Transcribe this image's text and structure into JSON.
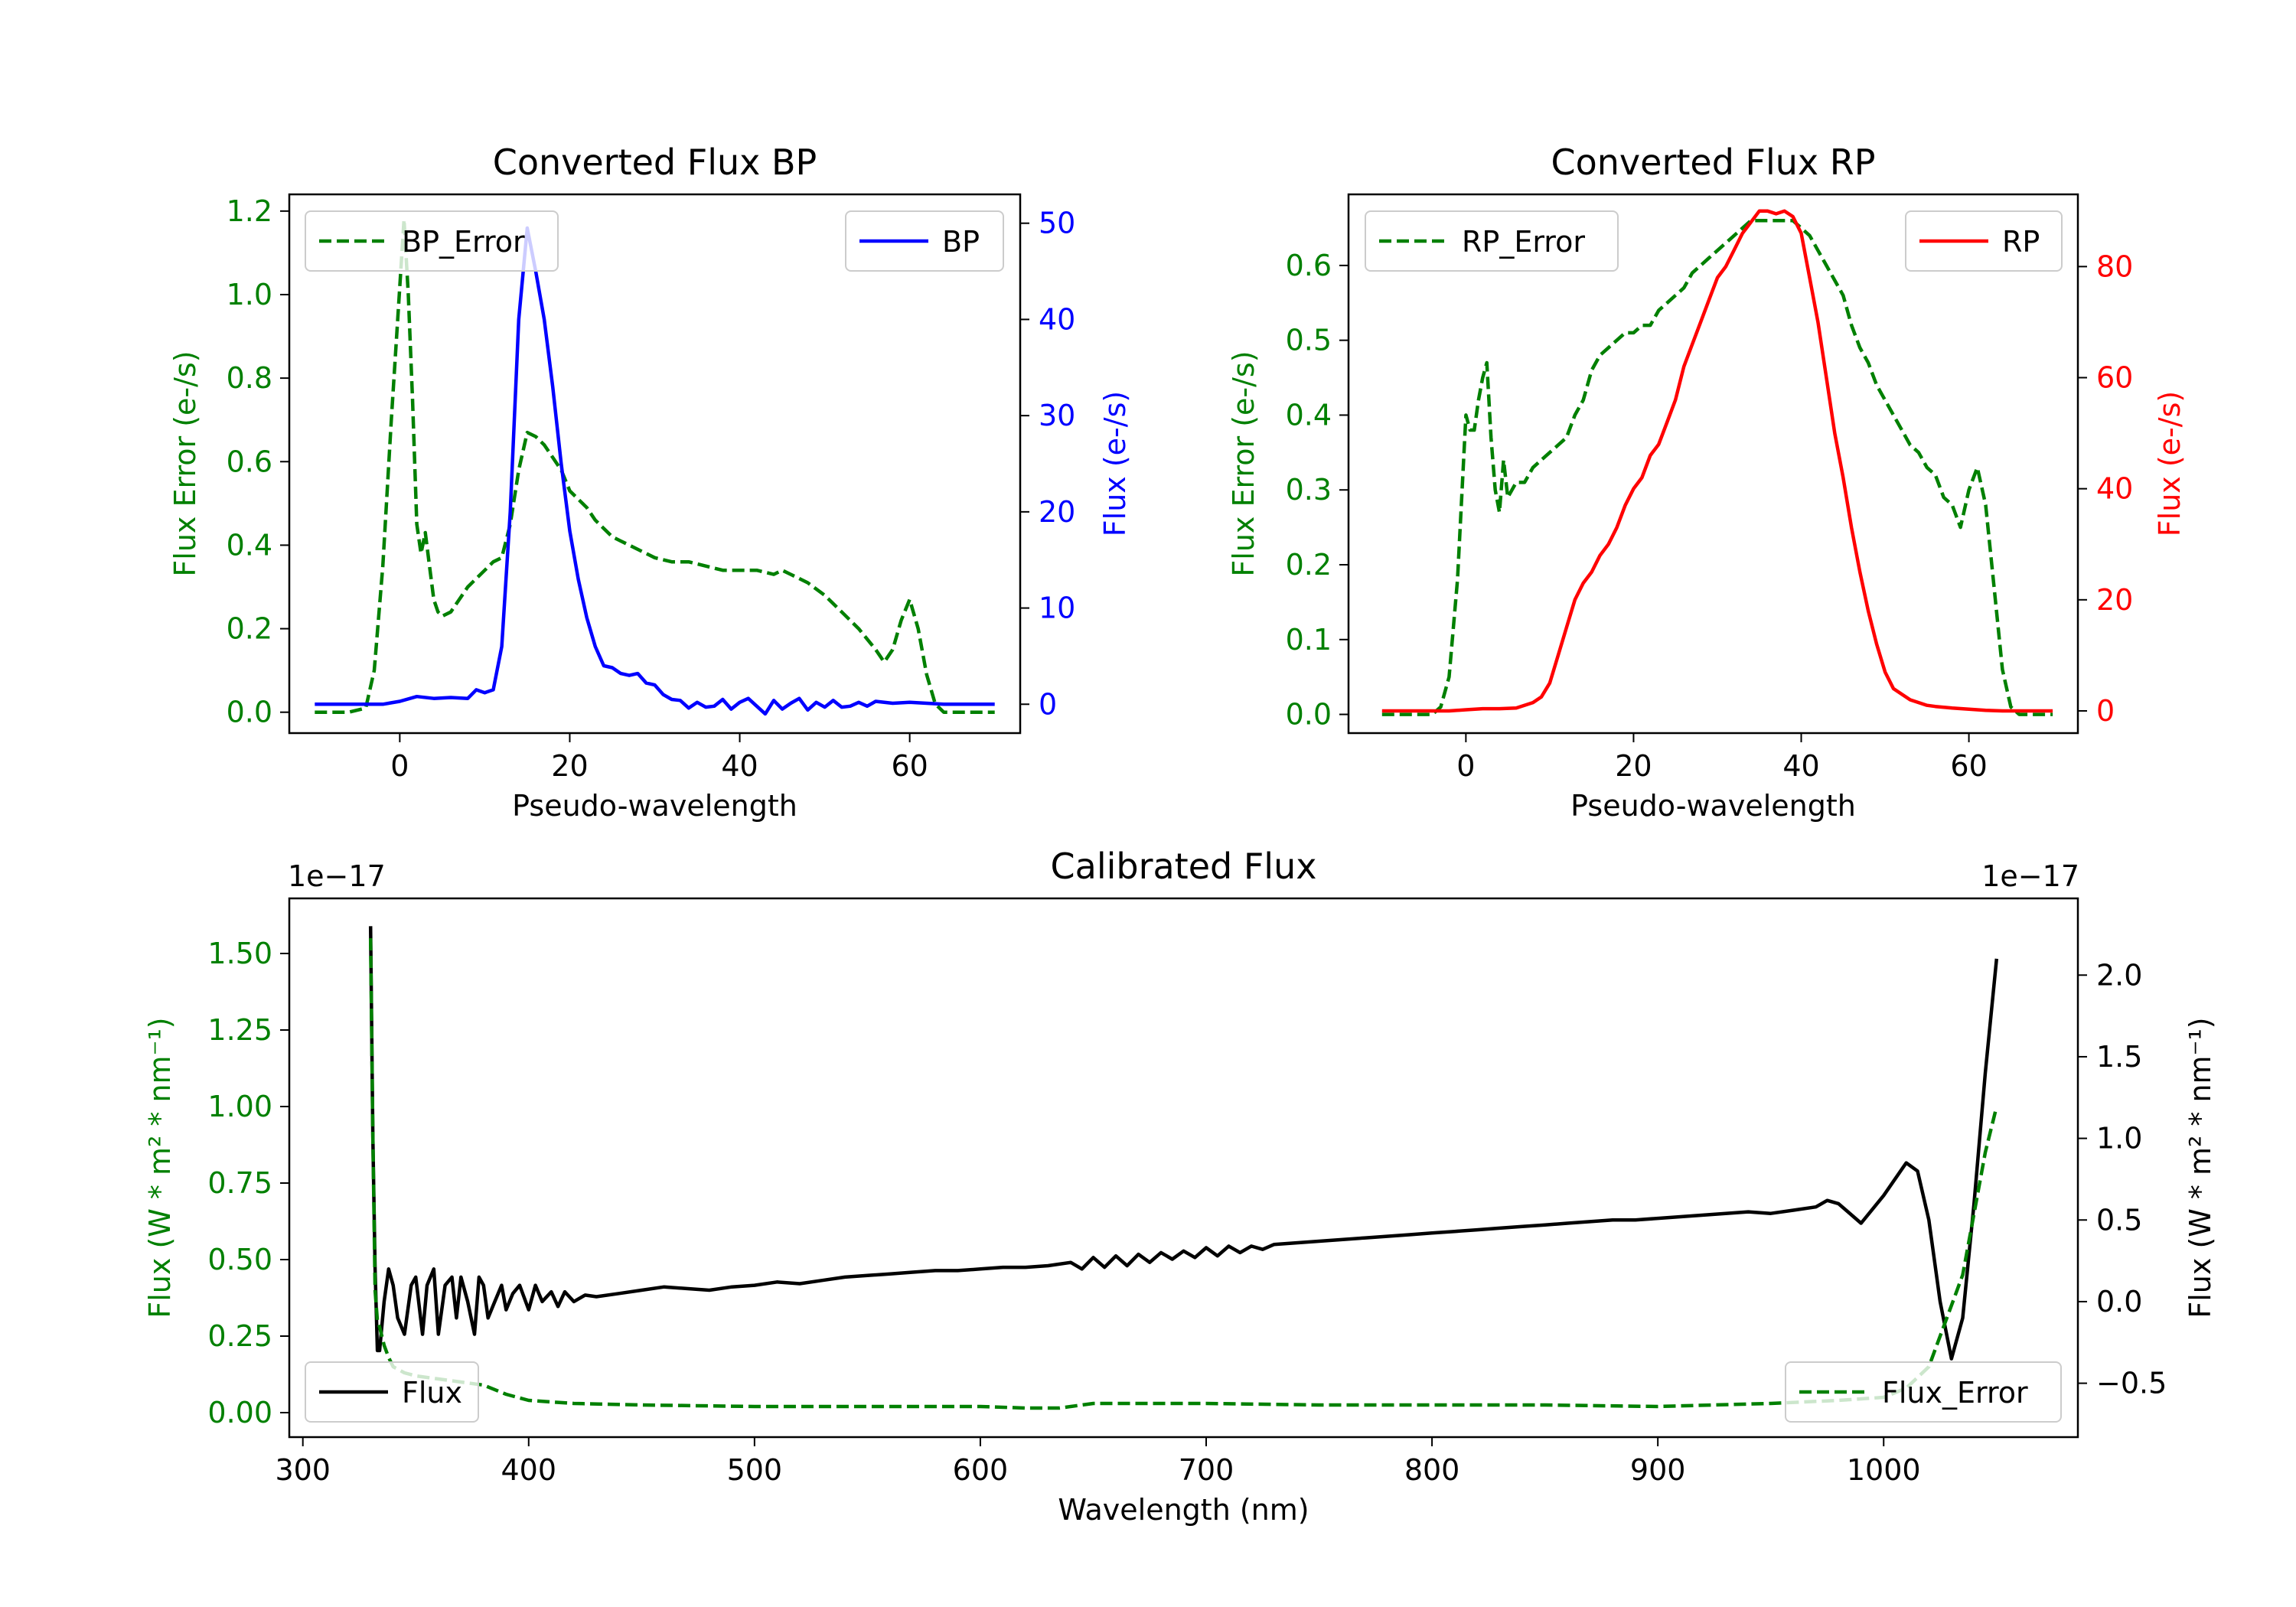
{
  "colors": {
    "error": "#008000",
    "bp": "#0000ff",
    "rp": "#ff0000",
    "flux": "#000000",
    "axis": "#000000"
  },
  "chart_data": [
    {
      "type": "line",
      "title": "Converted Flux BP",
      "xlabel": "Pseudo-wavelength",
      "ylabel_left": "Flux Error (e-/s)",
      "ylabel_right": "Flux (e-/s)",
      "xlim": [
        -13,
        73
      ],
      "ylim_left": [
        -0.05,
        1.24
      ],
      "ylim_right": [
        -3,
        53
      ],
      "x_ticks": [
        "0",
        "20",
        "40",
        "60"
      ],
      "y_ticks_left": [
        "0.0",
        "0.2",
        "0.4",
        "0.6",
        "0.8",
        "1.0",
        "1.2"
      ],
      "y_ticks_right": [
        "0",
        "10",
        "20",
        "30",
        "40",
        "50"
      ],
      "legend_left": "BP_Error",
      "legend_right": "BP",
      "series": [
        {
          "name": "BP_Error",
          "axis": "left",
          "style": "dashed",
          "x": [
            -10,
            -6,
            -4,
            -3,
            -2,
            -1,
            0,
            0.5,
            1,
            1.5,
            2,
            2.5,
            3,
            3.5,
            4,
            4.5,
            5,
            6,
            7,
            8,
            9,
            10,
            11,
            12,
            13,
            14,
            15,
            16,
            17,
            18,
            19,
            20,
            21,
            22,
            23,
            24,
            25,
            26,
            27,
            28,
            29,
            30,
            32,
            34,
            36,
            38,
            40,
            42,
            44,
            45,
            46,
            48,
            50,
            52,
            54,
            56,
            57,
            58,
            59,
            60,
            61,
            62,
            63,
            64,
            66,
            68,
            70
          ],
          "values": [
            0.0,
            0.0,
            0.01,
            0.1,
            0.35,
            0.7,
            1.02,
            1.18,
            1.0,
            0.75,
            0.45,
            0.38,
            0.43,
            0.35,
            0.27,
            0.24,
            0.23,
            0.24,
            0.27,
            0.3,
            0.32,
            0.34,
            0.36,
            0.37,
            0.45,
            0.58,
            0.67,
            0.66,
            0.64,
            0.61,
            0.58,
            0.53,
            0.51,
            0.49,
            0.46,
            0.44,
            0.42,
            0.41,
            0.4,
            0.39,
            0.38,
            0.37,
            0.36,
            0.36,
            0.35,
            0.34,
            0.34,
            0.34,
            0.33,
            0.34,
            0.33,
            0.31,
            0.28,
            0.24,
            0.2,
            0.15,
            0.12,
            0.15,
            0.22,
            0.27,
            0.2,
            0.09,
            0.02,
            0.0,
            0.0,
            0.0,
            0.0
          ]
        },
        {
          "name": "BP",
          "axis": "right",
          "style": "solid",
          "x": [
            -10,
            -6,
            -4,
            -2,
            0,
            2,
            4,
            6,
            8,
            9,
            10,
            11,
            12,
            13,
            14,
            15,
            16,
            17,
            18,
            19,
            20,
            21,
            22,
            23,
            24,
            25,
            26,
            27,
            28,
            29,
            30,
            31,
            32,
            33,
            34,
            35,
            36,
            37,
            38,
            39,
            40,
            41,
            42,
            43,
            44,
            45,
            46,
            47,
            48,
            49,
            50,
            51,
            52,
            53,
            54,
            55,
            56,
            58,
            60,
            62,
            64,
            66,
            68,
            70
          ],
          "values": [
            0.0,
            0.0,
            0.0,
            0.0,
            0.3,
            0.8,
            0.6,
            0.7,
            0.6,
            1.5,
            1.2,
            1.5,
            6.0,
            20.0,
            40.0,
            49.5,
            45.0,
            40.0,
            33.0,
            25.0,
            18.0,
            13.0,
            9.0,
            6.0,
            4.0,
            3.8,
            3.2,
            3.0,
            3.2,
            2.2,
            2.0,
            1.0,
            0.5,
            0.4,
            -0.4,
            0.2,
            -0.3,
            -0.2,
            0.5,
            -0.5,
            0.2,
            0.6,
            -0.2,
            -1.0,
            0.4,
            -0.5,
            0.1,
            0.6,
            -0.6,
            0.2,
            -0.3,
            0.4,
            -0.3,
            -0.2,
            0.2,
            -0.2,
            0.3,
            0.1,
            0.2,
            0.1,
            0.0,
            0.0,
            0.0,
            0.0
          ]
        }
      ]
    },
    {
      "type": "line",
      "title": "Converted Flux RP",
      "xlabel": "Pseudo-wavelength",
      "ylabel_left": "Flux Error (e-/s)",
      "ylabel_right": "Flux (e-/s)",
      "xlim": [
        -14,
        73
      ],
      "ylim_left": [
        -0.025,
        0.695
      ],
      "ylim_right": [
        -4,
        93
      ],
      "x_ticks": [
        "0",
        "20",
        "40",
        "60"
      ],
      "y_ticks_left": [
        "0.0",
        "0.1",
        "0.2",
        "0.3",
        "0.4",
        "0.5",
        "0.6"
      ],
      "y_ticks_right": [
        "0",
        "20",
        "40",
        "60",
        "80"
      ],
      "legend_left": "RP_Error",
      "legend_right": "RP",
      "series": [
        {
          "name": "RP_Error",
          "axis": "left",
          "style": "dashed",
          "x": [
            -10,
            -6,
            -4,
            -3,
            -2,
            -1,
            0,
            0.5,
            1,
            1.5,
            2,
            2.5,
            3,
            3.5,
            4,
            4.5,
            5,
            6,
            7,
            8,
            9,
            10,
            11,
            12,
            13,
            14,
            15,
            16,
            17,
            18,
            19,
            20,
            21,
            22,
            23,
            24,
            25,
            26,
            27,
            28,
            29,
            30,
            31,
            32,
            33,
            34,
            35,
            36,
            37,
            38,
            39,
            40,
            41,
            42,
            43,
            44,
            45,
            46,
            47,
            48,
            49,
            50,
            51,
            52,
            53,
            54,
            55,
            56,
            57,
            58,
            59,
            60,
            61,
            62,
            63,
            64,
            65,
            66,
            68,
            70
          ],
          "values": [
            0.0,
            0.0,
            0.0,
            0.01,
            0.05,
            0.18,
            0.4,
            0.38,
            0.38,
            0.42,
            0.45,
            0.47,
            0.37,
            0.3,
            0.27,
            0.34,
            0.29,
            0.31,
            0.31,
            0.33,
            0.34,
            0.35,
            0.36,
            0.37,
            0.4,
            0.42,
            0.46,
            0.48,
            0.49,
            0.5,
            0.51,
            0.51,
            0.52,
            0.52,
            0.54,
            0.55,
            0.56,
            0.57,
            0.59,
            0.6,
            0.61,
            0.62,
            0.63,
            0.64,
            0.65,
            0.66,
            0.66,
            0.66,
            0.66,
            0.66,
            0.66,
            0.65,
            0.64,
            0.62,
            0.6,
            0.58,
            0.56,
            0.52,
            0.49,
            0.47,
            0.44,
            0.42,
            0.4,
            0.38,
            0.36,
            0.35,
            0.33,
            0.32,
            0.29,
            0.28,
            0.25,
            0.3,
            0.33,
            0.28,
            0.17,
            0.06,
            0.01,
            0.0,
            0.0,
            0.0
          ]
        },
        {
          "name": "RP",
          "axis": "right",
          "style": "solid",
          "x": [
            -10,
            -6,
            -2,
            0,
            2,
            4,
            6,
            8,
            9,
            10,
            11,
            12,
            13,
            14,
            15,
            16,
            17,
            18,
            19,
            20,
            21,
            22,
            23,
            24,
            25,
            26,
            27,
            28,
            29,
            30,
            31,
            32,
            33,
            34,
            35,
            36,
            37,
            38,
            39,
            40,
            41,
            42,
            43,
            44,
            45,
            46,
            47,
            48,
            49,
            50,
            51,
            52,
            53,
            54,
            55,
            56,
            58,
            60,
            62,
            64,
            66,
            68,
            70
          ],
          "values": [
            0.0,
            0.0,
            0.0,
            0.2,
            0.4,
            0.4,
            0.5,
            1.5,
            2.5,
            5.0,
            10.0,
            15.0,
            20.0,
            23.0,
            25.0,
            28.0,
            30.0,
            33.0,
            37.0,
            40.0,
            42.0,
            46.0,
            48.0,
            52.0,
            56.0,
            62.0,
            66.0,
            70.0,
            74.0,
            78.0,
            80.0,
            83.0,
            86.0,
            88.0,
            90.0,
            90.0,
            89.5,
            90.0,
            89.0,
            86.0,
            78.0,
            70.0,
            60.0,
            50.0,
            42.0,
            33.0,
            25.0,
            18.0,
            12.0,
            7.0,
            4.0,
            3.0,
            2.0,
            1.5,
            1.0,
            0.8,
            0.5,
            0.3,
            0.1,
            0.0,
            0.0,
            0.0,
            0.0
          ]
        }
      ]
    },
    {
      "type": "line",
      "title": "Calibrated Flux",
      "xlabel": "Wavelength (nm)",
      "ylabel_left": "Flux (W * m² * nm⁻¹)",
      "ylabel_right": "Flux (W * m² * nm⁻¹)",
      "offset_left": "1e−17",
      "offset_right": "1e−17",
      "xlim": [
        294,
        1086
      ],
      "ylim_left": [
        -0.08,
        1.68
      ],
      "ylim_right": [
        -0.83,
        2.47
      ],
      "x_ticks": [
        "300",
        "400",
        "500",
        "600",
        "700",
        "800",
        "900",
        "1000"
      ],
      "y_ticks_left": [
        "0.00",
        "0.25",
        "0.50",
        "0.75",
        "1.00",
        "1.25",
        "1.50"
      ],
      "y_ticks_right": [
        "−0.5",
        "0.0",
        "0.5",
        "1.0",
        "1.5",
        "2.0"
      ],
      "legend_left": "Flux",
      "legend_right": "Flux_Error",
      "series": [
        {
          "name": "Flux",
          "axis": "right",
          "style": "solid",
          "x": [
            330,
            331,
            332,
            333,
            334,
            336,
            338,
            340,
            342,
            345,
            348,
            350,
            353,
            355,
            358,
            360,
            363,
            366,
            368,
            370,
            373,
            376,
            378,
            380,
            382,
            385,
            388,
            390,
            393,
            396,
            400,
            403,
            406,
            410,
            413,
            416,
            420,
            425,
            430,
            440,
            450,
            460,
            470,
            480,
            490,
            500,
            510,
            520,
            530,
            540,
            550,
            560,
            570,
            580,
            590,
            600,
            610,
            620,
            630,
            640,
            645,
            650,
            655,
            660,
            665,
            670,
            675,
            680,
            685,
            690,
            695,
            700,
            705,
            710,
            715,
            720,
            725,
            730,
            740,
            750,
            760,
            770,
            780,
            790,
            800,
            810,
            820,
            830,
            840,
            850,
            860,
            870,
            880,
            890,
            900,
            910,
            920,
            930,
            940,
            950,
            960,
            970,
            975,
            980,
            990,
            1000,
            1010,
            1015,
            1020,
            1025,
            1030,
            1035,
            1040,
            1045,
            1050
          ],
          "values": [
            2.3,
            1.0,
            0.2,
            -0.3,
            -0.3,
            0.0,
            0.2,
            0.1,
            -0.1,
            -0.2,
            0.1,
            0.15,
            -0.2,
            0.1,
            0.2,
            -0.2,
            0.1,
            0.15,
            -0.1,
            0.15,
            0.0,
            -0.2,
            0.15,
            0.1,
            -0.1,
            0.0,
            0.1,
            -0.05,
            0.05,
            0.1,
            -0.05,
            0.1,
            0.0,
            0.06,
            -0.03,
            0.06,
            0.0,
            0.04,
            0.03,
            0.05,
            0.07,
            0.09,
            0.08,
            0.07,
            0.09,
            0.1,
            0.12,
            0.11,
            0.13,
            0.15,
            0.16,
            0.17,
            0.18,
            0.19,
            0.19,
            0.2,
            0.21,
            0.21,
            0.22,
            0.24,
            0.2,
            0.27,
            0.21,
            0.28,
            0.22,
            0.29,
            0.24,
            0.3,
            0.26,
            0.31,
            0.27,
            0.33,
            0.28,
            0.34,
            0.3,
            0.34,
            0.32,
            0.35,
            0.36,
            0.37,
            0.38,
            0.39,
            0.4,
            0.41,
            0.42,
            0.43,
            0.44,
            0.45,
            0.46,
            0.47,
            0.48,
            0.49,
            0.5,
            0.5,
            0.51,
            0.52,
            0.53,
            0.54,
            0.55,
            0.54,
            0.56,
            0.58,
            0.62,
            0.6,
            0.48,
            0.65,
            0.85,
            0.8,
            0.5,
            0.0,
            -0.35,
            -0.1,
            0.6,
            1.4,
            2.1
          ]
        },
        {
          "name": "Flux_Error",
          "axis": "left",
          "style": "dashed",
          "x": [
            330,
            331,
            332,
            333,
            334,
            336,
            338,
            340,
            345,
            350,
            360,
            370,
            380,
            390,
            400,
            420,
            450,
            500,
            550,
            600,
            620,
            635,
            640,
            650,
            700,
            750,
            800,
            850,
            900,
            950,
            980,
            1000,
            1010,
            1020,
            1025,
            1030,
            1035,
            1040,
            1045,
            1050
          ],
          "values": [
            1.55,
            0.9,
            0.4,
            0.3,
            0.28,
            0.22,
            0.18,
            0.15,
            0.13,
            0.12,
            0.11,
            0.1,
            0.09,
            0.06,
            0.04,
            0.03,
            0.025,
            0.02,
            0.02,
            0.02,
            0.015,
            0.015,
            0.02,
            0.03,
            0.03,
            0.025,
            0.025,
            0.025,
            0.02,
            0.03,
            0.04,
            0.05,
            0.08,
            0.15,
            0.25,
            0.35,
            0.45,
            0.65,
            0.85,
            1.0
          ]
        }
      ]
    }
  ]
}
